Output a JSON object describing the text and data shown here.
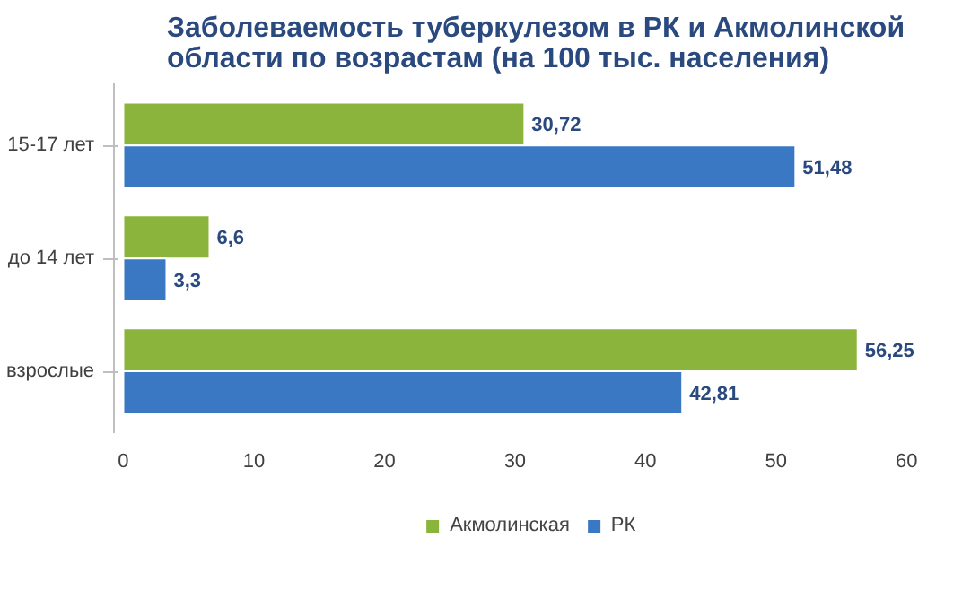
{
  "chart_data": {
    "type": "bar",
    "orientation": "horizontal",
    "title": "Заболеваемость туберкулезом в РК и Акмолинской\nобласти по возрастам (на 100 тыс. населения)",
    "categories": [
      "15-17 лет",
      "до 14 лет",
      "взрослые"
    ],
    "series": [
      {
        "name": "Акмолинская",
        "color": "#8ab43c",
        "values": [
          30.72,
          6.6,
          56.25
        ]
      },
      {
        "name": "РК",
        "color": "#3b78c3",
        "values": [
          51.48,
          3.3,
          42.81
        ]
      }
    ],
    "value_labels": [
      [
        "30,72",
        "6,6",
        "56,25"
      ],
      [
        "51,48",
        "3,3",
        "42,81"
      ]
    ],
    "xlim": [
      0,
      60
    ],
    "xticks": [
      0,
      10,
      20,
      30,
      40,
      50,
      60
    ],
    "grid": false,
    "legend": "bottom"
  }
}
